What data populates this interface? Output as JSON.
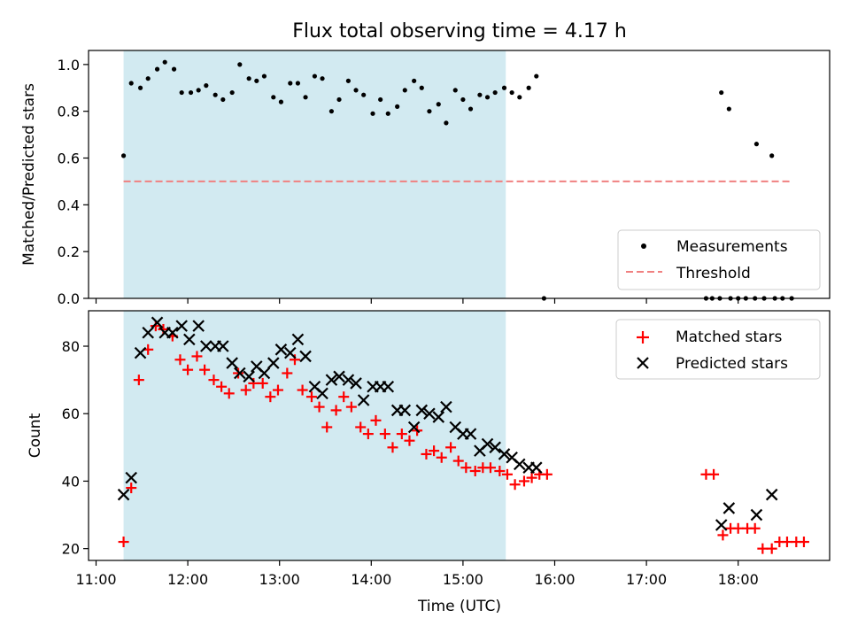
{
  "chart_data": [
    {
      "type": "scatter",
      "title": "Flux total observing time = 4.17 h",
      "ylabel": "Matched/Predicted stars",
      "xlabel": "",
      "ylim": [
        0,
        1.06
      ],
      "yticks": [
        "0.0",
        "0.2",
        "0.4",
        "0.6",
        "0.8",
        "1.0"
      ],
      "x_tick_labels": [
        "11:00",
        "12:00",
        "13:00",
        "14:00",
        "15:00",
        "16:00",
        "17:00",
        "18:00"
      ],
      "shaded_span": {
        "x_start": "11:18",
        "x_end": "15:28",
        "color": "#add8e6"
      },
      "threshold": {
        "name": "Threshold",
        "y": 0.5,
        "x_start": "11:18",
        "x_end": "18:35",
        "color": "#f08080"
      },
      "legend": {
        "position": "lower-right",
        "entries": [
          "Measurements",
          "Threshold"
        ]
      },
      "series": [
        {
          "name": "Measurements",
          "marker": "dot",
          "color": "#000000",
          "points": [
            [
              "11:18",
              0.61
            ],
            [
              "11:23",
              0.92
            ],
            [
              "11:29",
              0.9
            ],
            [
              "11:34",
              0.94
            ],
            [
              "11:40",
              0.98
            ],
            [
              "11:45",
              1.01
            ],
            [
              "11:51",
              0.98
            ],
            [
              "11:56",
              0.88
            ],
            [
              "12:02",
              0.88
            ],
            [
              "12:07",
              0.89
            ],
            [
              "12:12",
              0.91
            ],
            [
              "12:18",
              0.87
            ],
            [
              "12:23",
              0.85
            ],
            [
              "12:29",
              0.88
            ],
            [
              "12:34",
              1.0
            ],
            [
              "12:40",
              0.94
            ],
            [
              "12:45",
              0.93
            ],
            [
              "12:50",
              0.95
            ],
            [
              "12:56",
              0.86
            ],
            [
              "13:01",
              0.84
            ],
            [
              "13:07",
              0.92
            ],
            [
              "13:12",
              0.92
            ],
            [
              "13:17",
              0.86
            ],
            [
              "13:23",
              0.95
            ],
            [
              "13:28",
              0.94
            ],
            [
              "13:34",
              0.8
            ],
            [
              "13:39",
              0.85
            ],
            [
              "13:45",
              0.93
            ],
            [
              "13:50",
              0.89
            ],
            [
              "13:55",
              0.87
            ],
            [
              "14:01",
              0.79
            ],
            [
              "14:06",
              0.85
            ],
            [
              "14:11",
              0.79
            ],
            [
              "14:17",
              0.82
            ],
            [
              "14:22",
              0.89
            ],
            [
              "14:28",
              0.93
            ],
            [
              "14:33",
              0.9
            ],
            [
              "14:38",
              0.8
            ],
            [
              "14:44",
              0.83
            ],
            [
              "14:49",
              0.75
            ],
            [
              "14:55",
              0.89
            ],
            [
              "15:00",
              0.85
            ],
            [
              "15:05",
              0.81
            ],
            [
              "15:11",
              0.87
            ],
            [
              "15:16",
              0.86
            ],
            [
              "15:21",
              0.88
            ],
            [
              "15:27",
              0.9
            ],
            [
              "15:32",
              0.88
            ],
            [
              "15:37",
              0.86
            ],
            [
              "15:43",
              0.9
            ],
            [
              "15:48",
              0.95
            ],
            [
              "15:53",
              0.0
            ],
            [
              "17:39",
              0.0
            ],
            [
              "17:43",
              0.0
            ],
            [
              "17:48",
              0.0
            ],
            [
              "17:55",
              0.0
            ],
            [
              "18:00",
              0.0
            ],
            [
              "18:05",
              0.0
            ],
            [
              "18:11",
              0.0
            ],
            [
              "18:17",
              0.0
            ],
            [
              "18:24",
              0.0
            ],
            [
              "18:29",
              0.0
            ],
            [
              "18:35",
              0.0
            ],
            [
              "17:49",
              0.88
            ],
            [
              "17:54",
              0.81
            ],
            [
              "18:12",
              0.66
            ],
            [
              "18:22",
              0.61
            ]
          ]
        }
      ]
    },
    {
      "type": "scatter",
      "title": "",
      "ylabel": "Count",
      "xlabel": "Time (UTC)",
      "ylim": [
        16.5,
        90.5
      ],
      "yticks": [
        "20",
        "40",
        "60",
        "80"
      ],
      "x_tick_labels": [
        "11:00",
        "12:00",
        "13:00",
        "14:00",
        "15:00",
        "16:00",
        "17:00",
        "18:00"
      ],
      "shaded_span": {
        "x_start": "11:18",
        "x_end": "15:28",
        "color": "#add8e6"
      },
      "legend": {
        "position": "top-right",
        "entries": [
          "Matched stars",
          "Predicted stars"
        ]
      },
      "series": [
        {
          "name": "Matched stars",
          "marker": "plus",
          "color": "#ff0000",
          "points": [
            [
              "11:18",
              22
            ],
            [
              "11:23",
              38
            ],
            [
              "11:28",
              70
            ],
            [
              "11:34",
              79
            ],
            [
              "11:39",
              86
            ],
            [
              "11:44",
              85
            ],
            [
              "11:50",
              83
            ],
            [
              "11:55",
              76
            ],
            [
              "12:00",
              73
            ],
            [
              "12:06",
              77
            ],
            [
              "12:11",
              73
            ],
            [
              "12:17",
              70
            ],
            [
              "12:22",
              68
            ],
            [
              "12:27",
              66
            ],
            [
              "12:33",
              72
            ],
            [
              "12:38",
              67
            ],
            [
              "12:43",
              69
            ],
            [
              "12:49",
              69
            ],
            [
              "12:54",
              65
            ],
            [
              "12:59",
              67
            ],
            [
              "13:05",
              72
            ],
            [
              "13:10",
              76
            ],
            [
              "13:15",
              67
            ],
            [
              "13:21",
              65
            ],
            [
              "13:26",
              62
            ],
            [
              "13:31",
              56
            ],
            [
              "13:37",
              61
            ],
            [
              "13:42",
              65
            ],
            [
              "13:47",
              62
            ],
            [
              "13:53",
              56
            ],
            [
              "13:58",
              54
            ],
            [
              "14:03",
              58
            ],
            [
              "14:09",
              54
            ],
            [
              "14:14",
              50
            ],
            [
              "14:20",
              54
            ],
            [
              "14:25",
              52
            ],
            [
              "14:30",
              55
            ],
            [
              "14:36",
              48
            ],
            [
              "14:41",
              49
            ],
            [
              "14:46",
              47
            ],
            [
              "14:52",
              50
            ],
            [
              "14:57",
              46
            ],
            [
              "15:02",
              44
            ],
            [
              "15:08",
              43
            ],
            [
              "15:13",
              44
            ],
            [
              "15:18",
              44
            ],
            [
              "15:24",
              43
            ],
            [
              "15:29",
              42
            ],
            [
              "15:34",
              39
            ],
            [
              "15:40",
              40
            ],
            [
              "15:45",
              41
            ],
            [
              "15:50",
              42
            ],
            [
              "15:55",
              42
            ],
            [
              "17:39",
              42
            ],
            [
              "17:44",
              42
            ],
            [
              "17:50",
              24
            ],
            [
              "17:55",
              26
            ],
            [
              "18:00",
              26
            ],
            [
              "18:06",
              26
            ],
            [
              "18:11",
              26
            ],
            [
              "18:16",
              20
            ],
            [
              "18:22",
              20
            ],
            [
              "18:27",
              22
            ],
            [
              "18:32",
              22
            ],
            [
              "18:38",
              22
            ],
            [
              "18:43",
              22
            ]
          ]
        },
        {
          "name": "Predicted stars",
          "marker": "x",
          "color": "#000000",
          "points": [
            [
              "11:18",
              36
            ],
            [
              "11:23",
              41
            ],
            [
              "11:29",
              78
            ],
            [
              "11:34",
              84
            ],
            [
              "11:40",
              87
            ],
            [
              "11:45",
              84
            ],
            [
              "11:50",
              84
            ],
            [
              "11:56",
              86
            ],
            [
              "12:01",
              82
            ],
            [
              "12:07",
              86
            ],
            [
              "12:12",
              80
            ],
            [
              "12:18",
              80
            ],
            [
              "12:23",
              80
            ],
            [
              "12:29",
              75
            ],
            [
              "12:34",
              72
            ],
            [
              "12:40",
              71
            ],
            [
              "12:45",
              74
            ],
            [
              "12:50",
              72
            ],
            [
              "12:56",
              75
            ],
            [
              "13:01",
              79
            ],
            [
              "13:07",
              78
            ],
            [
              "13:12",
              82
            ],
            [
              "13:17",
              77
            ],
            [
              "13:23",
              68
            ],
            [
              "13:28",
              66
            ],
            [
              "13:34",
              70
            ],
            [
              "13:39",
              71
            ],
            [
              "13:45",
              70
            ],
            [
              "13:50",
              69
            ],
            [
              "13:55",
              64
            ],
            [
              "14:01",
              68
            ],
            [
              "14:06",
              68
            ],
            [
              "14:11",
              68
            ],
            [
              "14:17",
              61
            ],
            [
              "14:22",
              61
            ],
            [
              "14:28",
              56
            ],
            [
              "14:33",
              61
            ],
            [
              "14:38",
              60
            ],
            [
              "14:44",
              59
            ],
            [
              "14:49",
              62
            ],
            [
              "14:55",
              56
            ],
            [
              "15:00",
              54
            ],
            [
              "15:05",
              54
            ],
            [
              "15:11",
              49
            ],
            [
              "15:16",
              51
            ],
            [
              "15:21",
              50
            ],
            [
              "15:27",
              48
            ],
            [
              "15:32",
              47
            ],
            [
              "15:37",
              45
            ],
            [
              "15:43",
              44
            ],
            [
              "15:48",
              44
            ],
            [
              "17:49",
              27
            ],
            [
              "17:54",
              32
            ],
            [
              "18:12",
              30
            ],
            [
              "18:22",
              36
            ]
          ]
        }
      ]
    }
  ]
}
